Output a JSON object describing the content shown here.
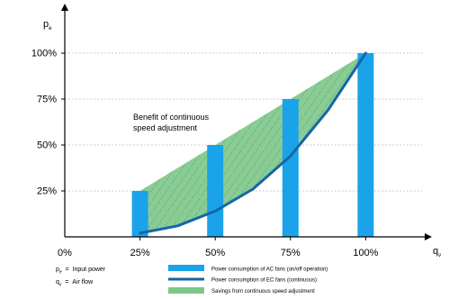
{
  "chart_data": {
    "type": "bar",
    "categories": [
      "25%",
      "50%",
      "75%",
      "100%"
    ],
    "values": [
      25,
      50,
      75,
      100
    ],
    "x_values": [
      25,
      50,
      75,
      100
    ],
    "xlim": [
      0,
      110
    ],
    "ylim": [
      0,
      110
    ],
    "x_ticks": [
      "0%",
      "25%",
      "50%",
      "75%",
      "100%"
    ],
    "y_ticks": [
      "25%",
      "50%",
      "75%",
      "100%"
    ],
    "x_tick_values": [
      0,
      25,
      50,
      75,
      100
    ],
    "y_tick_values": [
      25,
      50,
      75,
      100
    ],
    "grid": "horizontal dashed",
    "ylabel": "p",
    "ylabel_sub": "e",
    "xlabel": "q",
    "xlabel_sub": "v",
    "annotation": [
      "Benefit of continuous",
      "speed adjustment"
    ],
    "bar_series": {
      "name": "Power consumption of AC fans (on/off operation)",
      "color": "#1aa3e8"
    },
    "curve_series": {
      "name": "Power consumption of EC fans (continuous)",
      "color": "#1565a8",
      "x": [
        25,
        37.5,
        50,
        62.5,
        75,
        87.5,
        100
      ],
      "y": [
        2,
        6,
        14,
        26,
        44,
        69,
        100
      ]
    },
    "area_series": {
      "name": "Savings from continuous speed adjustment",
      "color": "#7dc68a",
      "upper_x": [
        25,
        100
      ],
      "upper_y": [
        25,
        100
      ]
    },
    "legend_position": "bottom"
  },
  "symbols": [
    {
      "sym": "p",
      "sub": "e",
      "text": "Input power"
    },
    {
      "sym": "q",
      "sub": "v",
      "text": "Air flow"
    }
  ]
}
